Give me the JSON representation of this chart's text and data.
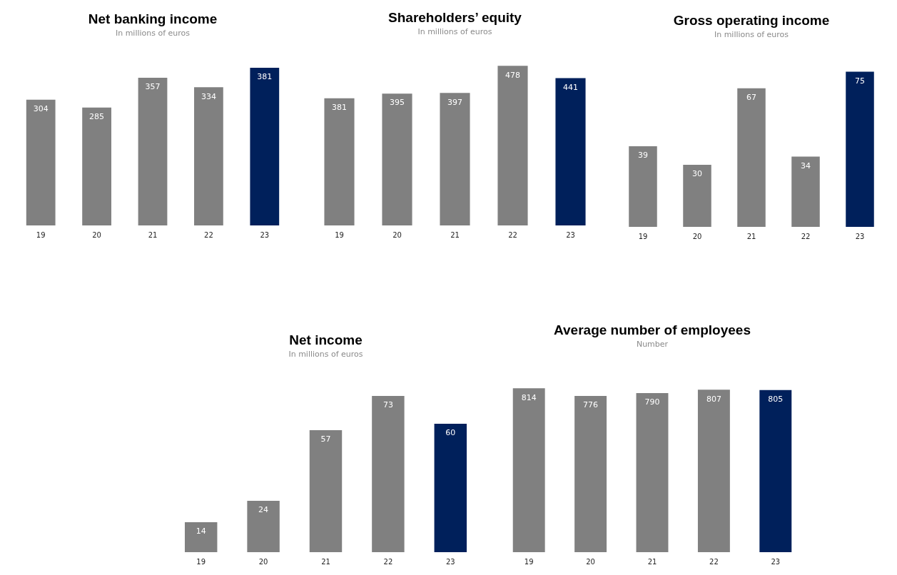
{
  "chart_data": [
    {
      "type": "bar",
      "title": "Net banking income",
      "subtitle": "In millions of euros",
      "categories": [
        "19",
        "20",
        "21",
        "22",
        "23"
      ],
      "values": [
        304,
        285,
        357,
        334,
        381
      ],
      "colors": [
        "#808080",
        "#808080",
        "#808080",
        "#808080",
        "#00205b"
      ],
      "data_labels": true,
      "grid": false,
      "legend": false
    },
    {
      "type": "bar",
      "title": "Shareholders’ equity",
      "subtitle": "In millions of euros",
      "categories": [
        "19",
        "20",
        "21",
        "22",
        "23"
      ],
      "values": [
        381,
        395,
        397,
        478,
        441
      ],
      "colors": [
        "#808080",
        "#808080",
        "#808080",
        "#808080",
        "#00205b"
      ],
      "data_labels": true,
      "grid": false,
      "legend": false
    },
    {
      "type": "bar",
      "title": "Gross operating income",
      "subtitle": "In millions of euros",
      "categories": [
        "19",
        "20",
        "21",
        "22",
        "23"
      ],
      "values": [
        39,
        30,
        67,
        34,
        75
      ],
      "colors": [
        "#808080",
        "#808080",
        "#808080",
        "#808080",
        "#00205b"
      ],
      "data_labels": true,
      "grid": false,
      "legend": false
    },
    {
      "type": "bar",
      "title": "Net income",
      "subtitle": "In millions of euros",
      "categories": [
        "19",
        "20",
        "21",
        "22",
        "23"
      ],
      "values": [
        14,
        24,
        57,
        73,
        60
      ],
      "colors": [
        "#808080",
        "#808080",
        "#808080",
        "#808080",
        "#00205b"
      ],
      "data_labels": true,
      "grid": false,
      "legend": false
    },
    {
      "type": "bar",
      "title": "Average number of employees",
      "subtitle": "Number",
      "categories": [
        "19",
        "20",
        "21",
        "22",
        "23"
      ],
      "values": [
        814,
        776,
        790,
        807,
        805
      ],
      "colors": [
        "#808080",
        "#808080",
        "#808080",
        "#808080",
        "#00205b"
      ],
      "data_labels": true,
      "grid": false,
      "legend": false
    }
  ]
}
